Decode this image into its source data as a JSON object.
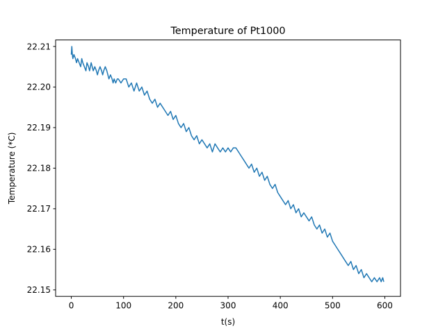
{
  "chart_data": {
    "type": "line",
    "title": "Temperature of Pt1000",
    "xlabel": "t(s)",
    "ylabel": "Temperature (*C)",
    "xlim": [
      -30,
      630
    ],
    "ylim": [
      22.1484,
      22.2116
    ],
    "x_ticks": [
      0,
      100,
      200,
      300,
      400,
      500,
      600
    ],
    "y_ticks": [
      22.15,
      22.16,
      22.17,
      22.18,
      22.19,
      22.2,
      22.21
    ],
    "y_tick_labels": [
      "22.15",
      "22.16",
      "22.17",
      "22.18",
      "22.19",
      "22.20",
      "22.21"
    ],
    "grid": false,
    "series": [
      {
        "color": "#1f77b4",
        "x": [
          0,
          1,
          2,
          3,
          5,
          8,
          10,
          12,
          15,
          18,
          20,
          22,
          25,
          28,
          30,
          33,
          35,
          38,
          40,
          42,
          45,
          48,
          50,
          52,
          55,
          58,
          60,
          62,
          65,
          68,
          70,
          72,
          75,
          78,
          80,
          82,
          85,
          88,
          90,
          95,
          100,
          105,
          110,
          115,
          120,
          125,
          130,
          135,
          140,
          145,
          150,
          155,
          160,
          165,
          170,
          175,
          180,
          185,
          190,
          195,
          200,
          205,
          210,
          215,
          220,
          225,
          230,
          235,
          240,
          245,
          250,
          255,
          260,
          265,
          270,
          275,
          280,
          285,
          290,
          295,
          300,
          305,
          310,
          315,
          320,
          325,
          330,
          335,
          340,
          345,
          350,
          355,
          360,
          365,
          370,
          375,
          380,
          385,
          390,
          395,
          400,
          405,
          410,
          415,
          420,
          425,
          430,
          435,
          440,
          445,
          450,
          455,
          460,
          465,
          470,
          475,
          480,
          485,
          490,
          495,
          500,
          505,
          510,
          515,
          520,
          525,
          530,
          535,
          540,
          545,
          550,
          555,
          560,
          565,
          570,
          575,
          580,
          585,
          590,
          593,
          596,
          598
        ],
        "y": [
          22.208,
          22.21,
          22.208,
          22.207,
          22.208,
          22.207,
          22.206,
          22.207,
          22.206,
          22.205,
          22.207,
          22.206,
          22.205,
          22.204,
          22.206,
          22.205,
          22.204,
          22.206,
          22.205,
          22.204,
          22.205,
          22.204,
          22.203,
          22.204,
          22.205,
          22.204,
          22.203,
          22.204,
          22.205,
          22.204,
          22.203,
          22.202,
          22.203,
          22.202,
          22.201,
          22.202,
          22.201,
          22.202,
          22.202,
          22.201,
          22.202,
          22.202,
          22.2,
          22.201,
          22.199,
          22.201,
          22.199,
          22.2,
          22.198,
          22.199,
          22.197,
          22.196,
          22.197,
          22.195,
          22.196,
          22.195,
          22.194,
          22.193,
          22.194,
          22.192,
          22.193,
          22.191,
          22.19,
          22.191,
          22.189,
          22.19,
          22.188,
          22.187,
          22.188,
          22.186,
          22.187,
          22.186,
          22.185,
          22.186,
          22.184,
          22.186,
          22.185,
          22.184,
          22.185,
          22.184,
          22.185,
          22.184,
          22.185,
          22.185,
          22.184,
          22.183,
          22.182,
          22.181,
          22.18,
          22.181,
          22.179,
          22.18,
          22.178,
          22.179,
          22.177,
          22.178,
          22.176,
          22.175,
          22.176,
          22.174,
          22.173,
          22.172,
          22.171,
          22.172,
          22.17,
          22.171,
          22.169,
          22.17,
          22.168,
          22.169,
          22.168,
          22.167,
          22.168,
          22.166,
          22.165,
          22.166,
          22.164,
          22.165,
          22.163,
          22.164,
          22.162,
          22.161,
          22.16,
          22.159,
          22.158,
          22.157,
          22.156,
          22.157,
          22.155,
          22.156,
          22.154,
          22.155,
          22.153,
          22.154,
          22.153,
          22.152,
          22.153,
          22.152,
          22.153,
          22.152,
          22.153,
          22.152
        ]
      }
    ]
  }
}
